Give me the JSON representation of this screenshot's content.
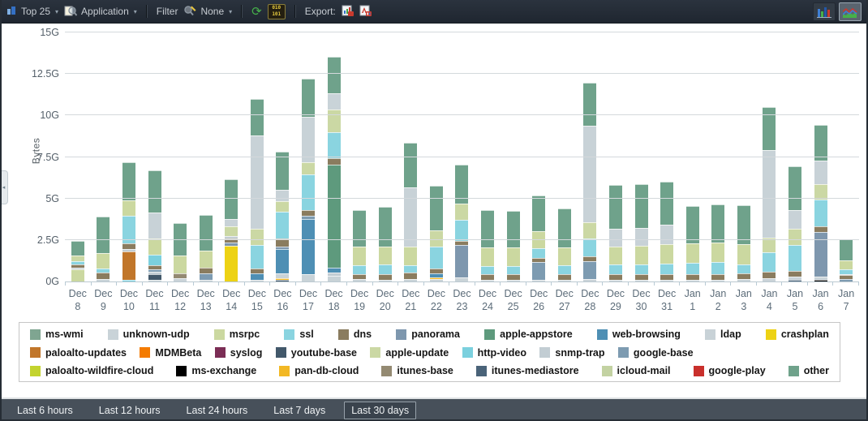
{
  "toolbar": {
    "top_count": "Top 25",
    "group_by": "Application",
    "filter_label": "Filter",
    "filter_value": "None",
    "raw_data_line1": "010",
    "raw_data_line2": "101",
    "export_label": "Export:"
  },
  "palette": {
    "ms-wmi": "#7FA591",
    "unknown-udp": "#C9D3D8",
    "msrpc": "#CBD8A0",
    "ssl": "#8AD4E0",
    "dns": "#8A7C5F",
    "panorama": "#7E97AE",
    "apple-appstore": "#5E9A7D",
    "web-browsing": "#4E8FB4",
    "ldap": "#C8D2D7",
    "crashplan": "#EDD214",
    "paloalto-updates": "#C1762A",
    "MDMBeta": "#F47B00",
    "syslog": "#7B2D55",
    "youtube-base": "#42586A",
    "apple-update": "#CBD8A4",
    "http-video": "#7BD0DE",
    "snmp-trap": "#C2CDD3",
    "google-base": "#7D9BB1",
    "paloalto-wildfire-cloud": "#C3D32E",
    "ms-exchange": "#000000",
    "pan-db-cloud": "#F2B824",
    "itunes-base": "#948A72",
    "itunes-mediastore": "#4A6379",
    "icloud-mail": "#C3D2A2",
    "google-play": "#C9302C",
    "other": "#6FA28B"
  },
  "legend": {
    "rows": [
      [
        "ms-wmi",
        "unknown-udp",
        "msrpc",
        "ssl",
        "dns",
        "panorama",
        "apple-appstore",
        "web-browsing",
        "ldap",
        "crashplan"
      ],
      [
        "paloalto-updates",
        "MDMBeta",
        "syslog",
        "youtube-base",
        "apple-update",
        "http-video",
        "snmp-trap",
        "google-base"
      ],
      [
        "paloalto-wildfire-cloud",
        "ms-exchange",
        "pan-db-cloud",
        "itunes-base",
        "itunes-mediastore",
        "icloud-mail",
        "google-play",
        "other"
      ]
    ]
  },
  "chart_data": {
    "type": "bar",
    "stacked": true,
    "ylabel": "Bytes",
    "unit": "G",
    "ylim": [
      0,
      15
    ],
    "ytick_step": 2.5,
    "yticks": [
      "0G",
      "2.5G",
      "5G",
      "7.5G",
      "10G",
      "12.5G",
      "15G"
    ],
    "grid": true,
    "legend_position": "bottom",
    "categories": [
      "Dec 8",
      "Dec 9",
      "Dec 10",
      "Dec 11",
      "Dec 12",
      "Dec 13",
      "Dec 14",
      "Dec 15",
      "Dec 16",
      "Dec 17",
      "Dec 18",
      "Dec 19",
      "Dec 20",
      "Dec 21",
      "Dec 22",
      "Dec 23",
      "Dec 24",
      "Dec 25",
      "Dec 26",
      "Dec 27",
      "Dec 28",
      "Dec 29",
      "Dec 30",
      "Dec 31",
      "Jan 1",
      "Jan 2",
      "Jan 3",
      "Jan 4",
      "Jan 5",
      "Jan 6",
      "Jan 7"
    ],
    "bars": [
      {
        "month": "Dec",
        "day": "8",
        "total": 2.45,
        "segments": [
          [
            "msrpc",
            0.72
          ],
          [
            "snmp-trap",
            0.1
          ],
          [
            "dns",
            0.2
          ],
          [
            "ssl",
            0.22
          ],
          [
            "apple-update",
            0.35
          ],
          [
            "other",
            0.86
          ]
        ]
      },
      {
        "month": "Dec",
        "day": "9",
        "total": 3.89,
        "segments": [
          [
            "unknown-udp",
            0.15
          ],
          [
            "dns",
            0.38
          ],
          [
            "ssl",
            0.25
          ],
          [
            "msrpc",
            0.95
          ],
          [
            "other",
            2.16
          ]
        ]
      },
      {
        "month": "Dec",
        "day": "10",
        "total": 7.19,
        "segments": [
          [
            "http-video",
            0.08
          ],
          [
            "paloalto-updates",
            1.72
          ],
          [
            "snmp-trap",
            0.15
          ],
          [
            "dns",
            0.35
          ],
          [
            "ssl",
            1.65
          ],
          [
            "msrpc",
            0.95
          ],
          [
            "other",
            2.29
          ]
        ]
      },
      {
        "month": "Dec",
        "day": "11",
        "total": 6.68,
        "segments": [
          [
            "unknown-udp",
            0.1
          ],
          [
            "youtube-base",
            0.35
          ],
          [
            "snmp-trap",
            0.15
          ],
          [
            "google-base",
            0.15
          ],
          [
            "dns",
            0.22
          ],
          [
            "http-video",
            0.63
          ],
          [
            "msrpc",
            0.98
          ],
          [
            "ldap",
            1.6
          ],
          [
            "other",
            2.5
          ]
        ]
      },
      {
        "month": "Dec",
        "day": "12",
        "total": 3.53,
        "segments": [
          [
            "unknown-udp",
            0.18
          ],
          [
            "itunes-base",
            0.32
          ],
          [
            "msrpc",
            1.05
          ],
          [
            "other",
            1.98
          ]
        ]
      },
      {
        "month": "Dec",
        "day": "13",
        "total": 4.0,
        "segments": [
          [
            "unknown-udp",
            0.1
          ],
          [
            "google-base",
            0.38
          ],
          [
            "dns",
            0.35
          ],
          [
            "msrpc",
            1.05
          ],
          [
            "other",
            2.12
          ]
        ]
      },
      {
        "month": "Dec",
        "day": "14",
        "total": 6.15,
        "segments": [
          [
            "crashplan",
            2.15
          ],
          [
            "panorama",
            0.2
          ],
          [
            "dns",
            0.22
          ],
          [
            "snmp-trap",
            0.15
          ],
          [
            "apple-update",
            0.6
          ],
          [
            "ldap",
            0.45
          ],
          [
            "other",
            2.38
          ]
        ]
      },
      {
        "month": "Dec",
        "day": "15",
        "total": 11.0,
        "segments": [
          [
            "unknown-udp",
            0.12
          ],
          [
            "web-browsing",
            0.35
          ],
          [
            "dns",
            0.3
          ],
          [
            "ssl",
            1.45
          ],
          [
            "apple-update",
            0.95
          ],
          [
            "ldap",
            5.65
          ],
          [
            "other",
            2.18
          ]
        ]
      },
      {
        "month": "Dec",
        "day": "16",
        "total": 7.84,
        "segments": [
          [
            "youtube-base",
            0.12
          ],
          [
            "pan-db-cloud",
            0.1
          ],
          [
            "unknown-udp",
            0.25
          ],
          [
            "web-browsing",
            1.5
          ],
          [
            "panorama",
            0.12
          ],
          [
            "dns",
            0.5
          ],
          [
            "ssl",
            1.6
          ],
          [
            "apple-update",
            0.66
          ],
          [
            "ldap",
            0.68
          ],
          [
            "other",
            2.31
          ]
        ]
      },
      {
        "month": "Dec",
        "day": "17",
        "total": 12.2,
        "segments": [
          [
            "unknown-udp",
            0.45
          ],
          [
            "web-browsing",
            3.3
          ],
          [
            "google-base",
            0.22
          ],
          [
            "dns",
            0.35
          ],
          [
            "ssl",
            2.15
          ],
          [
            "apple-update",
            0.7
          ],
          [
            "ldap",
            2.75
          ],
          [
            "other",
            2.28
          ]
        ]
      },
      {
        "month": "Dec",
        "day": "18",
        "total": 13.55,
        "segments": [
          [
            "ldap",
            0.35
          ],
          [
            "snmp-trap",
            0.2
          ],
          [
            "web-browsing",
            0.28
          ],
          [
            "apple-appstore",
            6.2
          ],
          [
            "dns",
            0.4
          ],
          [
            "ssl",
            1.55
          ],
          [
            "apple-update",
            1.4
          ],
          [
            "unknown-udp",
            0.95
          ],
          [
            "other",
            2.22
          ]
        ]
      },
      {
        "month": "Dec",
        "day": "19",
        "total": 4.3,
        "segments": [
          [
            "unknown-udp",
            0.15
          ],
          [
            "dns",
            0.3
          ],
          [
            "ssl",
            0.55
          ],
          [
            "msrpc",
            1.1
          ],
          [
            "other",
            2.2
          ]
        ]
      },
      {
        "month": "Dec",
        "day": "20",
        "total": 4.5,
        "segments": [
          [
            "unknown-udp",
            0.12
          ],
          [
            "dns",
            0.32
          ],
          [
            "ssl",
            0.6
          ],
          [
            "msrpc",
            1.05
          ],
          [
            "other",
            2.41
          ]
        ]
      },
      {
        "month": "Dec",
        "day": "21",
        "total": 8.38,
        "segments": [
          [
            "unknown-udp",
            0.16
          ],
          [
            "dns",
            0.38
          ],
          [
            "ssl",
            0.44
          ],
          [
            "msrpc",
            1.14
          ],
          [
            "ldap",
            3.56
          ],
          [
            "other",
            2.7
          ]
        ]
      },
      {
        "month": "Dec",
        "day": "22",
        "total": 5.77,
        "segments": [
          [
            "unknown-udp",
            0.15
          ],
          [
            "pan-db-cloud",
            0.1
          ],
          [
            "web-browsing",
            0.22
          ],
          [
            "dns",
            0.3
          ],
          [
            "ssl",
            1.35
          ],
          [
            "apple-update",
            0.95
          ],
          [
            "other",
            2.7
          ]
        ]
      },
      {
        "month": "Dec",
        "day": "23",
        "total": 7.04,
        "segments": [
          [
            "unknown-udp",
            0.25
          ],
          [
            "panorama",
            1.95
          ],
          [
            "dns",
            0.25
          ],
          [
            "ssl",
            1.28
          ],
          [
            "apple-update",
            0.95
          ],
          [
            "other",
            2.36
          ]
        ]
      },
      {
        "month": "Dec",
        "day": "24",
        "total": 4.3,
        "segments": [
          [
            "unknown-udp",
            0.12
          ],
          [
            "dns",
            0.33
          ],
          [
            "ssl",
            0.5
          ],
          [
            "msrpc",
            1.1
          ],
          [
            "other",
            2.25
          ]
        ]
      },
      {
        "month": "Dec",
        "day": "25",
        "total": 4.26,
        "segments": [
          [
            "unknown-udp",
            0.1
          ],
          [
            "dns",
            0.32
          ],
          [
            "ssl",
            0.52
          ],
          [
            "msrpc",
            1.12
          ],
          [
            "other",
            2.2
          ]
        ]
      },
      {
        "month": "Dec",
        "day": "26",
        "total": 5.16,
        "segments": [
          [
            "unknown-udp",
            0.1
          ],
          [
            "google-base",
            1.05
          ],
          [
            "dns",
            0.25
          ],
          [
            "ssl",
            0.62
          ],
          [
            "msrpc",
            1.0
          ],
          [
            "other",
            2.14
          ]
        ]
      },
      {
        "month": "Dec",
        "day": "27",
        "total": 4.4,
        "segments": [
          [
            "unknown-udp",
            0.1
          ],
          [
            "dns",
            0.35
          ],
          [
            "ssl",
            0.52
          ],
          [
            "msrpc",
            1.1
          ],
          [
            "other",
            2.33
          ]
        ]
      },
      {
        "month": "Dec",
        "day": "28",
        "total": 11.97,
        "segments": [
          [
            "unknown-udp",
            0.15
          ],
          [
            "google-base",
            1.05
          ],
          [
            "dns",
            0.32
          ],
          [
            "ssl",
            1.05
          ],
          [
            "apple-update",
            1.0
          ],
          [
            "ldap",
            5.8
          ],
          [
            "other",
            2.6
          ]
        ]
      },
      {
        "month": "Dec",
        "day": "29",
        "total": 5.8,
        "segments": [
          [
            "unknown-udp",
            0.1
          ],
          [
            "dns",
            0.35
          ],
          [
            "ssl",
            0.6
          ],
          [
            "msrpc",
            1.05
          ],
          [
            "ldap",
            1.1
          ],
          [
            "other",
            2.6
          ]
        ]
      },
      {
        "month": "Dec",
        "day": "30",
        "total": 5.88,
        "segments": [
          [
            "unknown-udp",
            0.1
          ],
          [
            "dns",
            0.35
          ],
          [
            "ssl",
            0.58
          ],
          [
            "msrpc",
            1.12
          ],
          [
            "ldap",
            1.1
          ],
          [
            "other",
            2.63
          ]
        ]
      },
      {
        "month": "Dec",
        "day": "31",
        "total": 6.0,
        "segments": [
          [
            "unknown-udp",
            0.1
          ],
          [
            "dns",
            0.35
          ],
          [
            "ssl",
            0.62
          ],
          [
            "msrpc",
            1.18
          ],
          [
            "ldap",
            1.15
          ],
          [
            "other",
            2.6
          ]
        ]
      },
      {
        "month": "Jan",
        "day": "1",
        "total": 4.53,
        "segments": [
          [
            "unknown-udp",
            0.1
          ],
          [
            "dns",
            0.35
          ],
          [
            "ssl",
            0.7
          ],
          [
            "msrpc",
            1.15
          ],
          [
            "other",
            2.23
          ]
        ]
      },
      {
        "month": "Jan",
        "day": "2",
        "total": 4.66,
        "segments": [
          [
            "unknown-udp",
            0.1
          ],
          [
            "dns",
            0.35
          ],
          [
            "ssl",
            0.72
          ],
          [
            "msrpc",
            1.2
          ],
          [
            "other",
            2.29
          ]
        ]
      },
      {
        "month": "Jan",
        "day": "3",
        "total": 4.6,
        "segments": [
          [
            "unknown-udp",
            0.15
          ],
          [
            "dns",
            0.32
          ],
          [
            "ssl",
            0.58
          ],
          [
            "msrpc",
            1.18
          ],
          [
            "other",
            2.37
          ]
        ]
      },
      {
        "month": "Jan",
        "day": "4",
        "total": 10.5,
        "segments": [
          [
            "unknown-udp",
            0.2
          ],
          [
            "dns",
            0.38
          ],
          [
            "ssl",
            1.2
          ],
          [
            "apple-update",
            0.85
          ],
          [
            "ldap",
            5.3
          ],
          [
            "other",
            2.57
          ]
        ]
      },
      {
        "month": "Jan",
        "day": "5",
        "total": 6.94,
        "segments": [
          [
            "itunes-mediastore",
            0.1
          ],
          [
            "unknown-udp",
            0.18
          ],
          [
            "dns",
            0.35
          ],
          [
            "ssl",
            1.55
          ],
          [
            "apple-update",
            1.0
          ],
          [
            "ldap",
            1.12
          ],
          [
            "other",
            2.64
          ]
        ]
      },
      {
        "month": "Jan",
        "day": "6",
        "total": 9.43,
        "segments": [
          [
            "ms-exchange",
            0.08
          ],
          [
            "unknown-udp",
            0.22
          ],
          [
            "panorama",
            2.7
          ],
          [
            "dns",
            0.32
          ],
          [
            "ssl",
            1.6
          ],
          [
            "apple-update",
            0.95
          ],
          [
            "ldap",
            1.4
          ],
          [
            "other",
            2.16
          ]
        ]
      },
      {
        "month": "Jan",
        "day": "7",
        "total": 2.53,
        "segments": [
          [
            "google-base",
            0.15
          ],
          [
            "dns",
            0.22
          ],
          [
            "snmp-trap",
            0.08
          ],
          [
            "ssl",
            0.3
          ],
          [
            "msrpc",
            0.53
          ],
          [
            "other",
            1.25
          ]
        ]
      }
    ]
  },
  "footer": {
    "buttons": [
      "Last 6 hours",
      "Last 12 hours",
      "Last 24 hours",
      "Last 7 days",
      "Last 30 days"
    ],
    "selected": "Last 30 days"
  }
}
